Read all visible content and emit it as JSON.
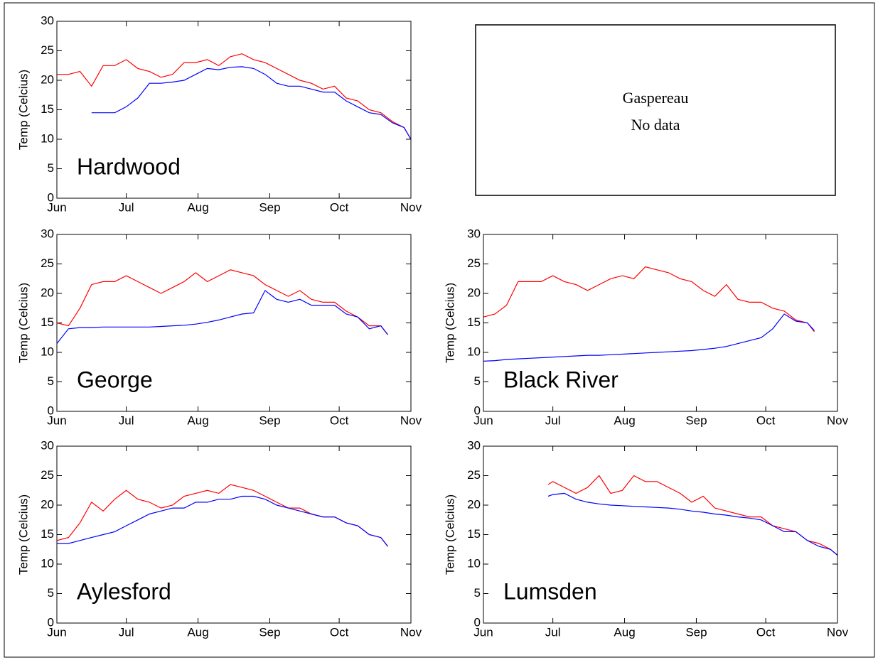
{
  "chart_data": [
    {
      "type": "line",
      "label": "Hardwood",
      "ylabel": "Temp (Celcius)",
      "x": [
        0,
        5,
        10,
        15,
        20,
        25,
        30,
        35,
        40,
        45,
        50,
        55,
        60,
        65,
        70,
        75,
        80,
        85,
        90,
        95,
        100,
        105,
        110,
        115,
        120,
        125,
        130,
        135,
        140,
        145,
        150,
        153
      ],
      "series": [
        {
          "color": "#ff0000",
          "values": [
            21,
            21,
            21.5,
            19,
            22.5,
            22.5,
            23.5,
            22,
            21.5,
            20.5,
            21,
            23,
            23,
            23.5,
            22.5,
            24,
            24.5,
            23.5,
            23,
            22,
            21,
            20,
            19.5,
            18.5,
            19,
            17,
            16.5,
            15,
            14.5,
            13,
            12,
            10
          ]
        },
        {
          "color": "#0000ff",
          "values": [
            null,
            null,
            null,
            14.5,
            14.5,
            14.5,
            15.5,
            17,
            19.5,
            19.5,
            19.7,
            20,
            21,
            22,
            21.8,
            22.2,
            22.3,
            22,
            21,
            19.5,
            19,
            19,
            18.5,
            18,
            18,
            16.5,
            15.5,
            14.5,
            14.2,
            12.8,
            12,
            10
          ]
        }
      ],
      "xlim": [
        0,
        153
      ],
      "xticks": [
        {
          "value": 0,
          "label": "Jun"
        },
        {
          "value": 30,
          "label": "Jul"
        },
        {
          "value": 61,
          "label": "Aug"
        },
        {
          "value": 92,
          "label": "Sep"
        },
        {
          "value": 122,
          "label": "Oct"
        },
        {
          "value": 153,
          "label": "Nov"
        }
      ],
      "ylim": [
        0,
        30
      ],
      "yticks": [
        0,
        5,
        10,
        15,
        20,
        25,
        30
      ]
    },
    {
      "type": "line",
      "label": "George",
      "ylabel": "Temp (Celcius)",
      "x": [
        0,
        5,
        10,
        15,
        20,
        25,
        30,
        35,
        40,
        45,
        50,
        55,
        60,
        65,
        70,
        75,
        80,
        85,
        90,
        95,
        100,
        105,
        110,
        115,
        120,
        125,
        130,
        135,
        140,
        143
      ],
      "series": [
        {
          "color": "#ff0000",
          "values": [
            15,
            14.5,
            17.5,
            21.5,
            22,
            22,
            23,
            22,
            21,
            20,
            21,
            22,
            23.5,
            22,
            23,
            24,
            23.5,
            23,
            21.5,
            20.5,
            19.5,
            20.5,
            19,
            18.5,
            18.5,
            17,
            16,
            14.5,
            14.5,
            13
          ]
        },
        {
          "color": "#0000ff",
          "values": [
            11.5,
            14,
            14.2,
            14.2,
            14.3,
            14.3,
            14.3,
            14.3,
            14.3,
            14.4,
            14.5,
            14.6,
            14.8,
            15.1,
            15.5,
            16,
            16.5,
            16.7,
            20.5,
            19,
            18.5,
            19,
            18,
            18,
            18,
            16.5,
            16,
            14,
            14.5,
            13
          ]
        }
      ],
      "xlim": [
        0,
        153
      ],
      "xticks": [
        {
          "value": 0,
          "label": "Jun"
        },
        {
          "value": 30,
          "label": "Jul"
        },
        {
          "value": 61,
          "label": "Aug"
        },
        {
          "value": 92,
          "label": "Sep"
        },
        {
          "value": 122,
          "label": "Oct"
        },
        {
          "value": 153,
          "label": "Nov"
        }
      ],
      "ylim": [
        0,
        30
      ],
      "yticks": [
        0,
        5,
        10,
        15,
        20,
        25,
        30
      ]
    },
    {
      "type": "line",
      "label": "Black River",
      "ylabel": "Temp (Celcius)",
      "x": [
        0,
        5,
        10,
        15,
        20,
        25,
        30,
        35,
        40,
        45,
        50,
        55,
        60,
        65,
        70,
        75,
        80,
        85,
        90,
        95,
        100,
        105,
        110,
        115,
        120,
        125,
        130,
        135,
        140,
        143
      ],
      "series": [
        {
          "color": "#ff0000",
          "values": [
            16,
            16.5,
            18,
            22,
            22,
            22,
            23,
            22,
            21.5,
            20.5,
            21.5,
            22.5,
            23,
            22.5,
            24.5,
            24,
            23.5,
            22.5,
            22,
            20.5,
            19.5,
            21.5,
            19,
            18.5,
            18.5,
            17.5,
            17,
            15.5,
            15,
            13.5
          ]
        },
        {
          "color": "#0000ff",
          "values": [
            8.5,
            8.6,
            8.8,
            8.9,
            9,
            9.1,
            9.2,
            9.3,
            9.4,
            9.5,
            9.5,
            9.6,
            9.7,
            9.8,
            9.9,
            10,
            10.1,
            10.2,
            10.3,
            10.5,
            10.7,
            11,
            11.5,
            12,
            12.5,
            14,
            16.5,
            15.3,
            15,
            13.7
          ]
        }
      ],
      "xlim": [
        0,
        153
      ],
      "xticks": [
        {
          "value": 0,
          "label": "Jun"
        },
        {
          "value": 30,
          "label": "Jul"
        },
        {
          "value": 61,
          "label": "Aug"
        },
        {
          "value": 92,
          "label": "Sep"
        },
        {
          "value": 122,
          "label": "Oct"
        },
        {
          "value": 153,
          "label": "Nov"
        }
      ],
      "ylim": [
        0,
        30
      ],
      "yticks": [
        0,
        5,
        10,
        15,
        20,
        25,
        30
      ]
    },
    {
      "type": "line",
      "label": "Aylesford",
      "ylabel": "Temp (Celcius)",
      "x": [
        0,
        5,
        10,
        15,
        20,
        25,
        30,
        35,
        40,
        45,
        50,
        55,
        60,
        65,
        70,
        75,
        80,
        85,
        90,
        95,
        100,
        105,
        110,
        115,
        120,
        125,
        130,
        135,
        140,
        143
      ],
      "series": [
        {
          "color": "#ff0000",
          "values": [
            14,
            14.5,
            17,
            20.5,
            19,
            21,
            22.5,
            21,
            20.5,
            19.5,
            20,
            21.5,
            22,
            22.5,
            22,
            23.5,
            23,
            22.5,
            21.5,
            20.5,
            19.5,
            19.5,
            18.5,
            18,
            18,
            17,
            16.5,
            15,
            14.5,
            13
          ]
        },
        {
          "color": "#0000ff",
          "values": [
            13.5,
            13.5,
            14,
            14.5,
            15,
            15.5,
            16.5,
            17.5,
            18.5,
            19,
            19.5,
            19.5,
            20.5,
            20.5,
            21,
            21,
            21.5,
            21.5,
            21,
            20,
            19.5,
            19,
            18.5,
            18,
            18,
            17,
            16.5,
            15,
            14.5,
            13
          ]
        }
      ],
      "xlim": [
        0,
        153
      ],
      "xticks": [
        {
          "value": 0,
          "label": "Jun"
        },
        {
          "value": 30,
          "label": "Jul"
        },
        {
          "value": 61,
          "label": "Aug"
        },
        {
          "value": 92,
          "label": "Sep"
        },
        {
          "value": 122,
          "label": "Oct"
        },
        {
          "value": 153,
          "label": "Nov"
        }
      ],
      "ylim": [
        0,
        30
      ],
      "yticks": [
        0,
        5,
        10,
        15,
        20,
        25,
        30
      ]
    },
    {
      "type": "line",
      "label": "Lumsden",
      "ylabel": "Temp (Celcius)",
      "x": [
        28,
        30,
        35,
        40,
        45,
        50,
        55,
        60,
        65,
        70,
        75,
        80,
        85,
        90,
        95,
        100,
        105,
        110,
        115,
        120,
        125,
        130,
        135,
        140,
        145,
        150,
        153
      ],
      "series": [
        {
          "color": "#ff0000",
          "values": [
            23.5,
            24,
            23,
            22,
            23,
            25,
            22,
            22.5,
            25,
            24,
            24,
            23,
            22,
            20.5,
            21.5,
            19.5,
            19,
            18.5,
            18,
            18,
            16.5,
            16,
            15.5,
            14,
            13.5,
            12.5,
            11.5
          ]
        },
        {
          "color": "#0000ff",
          "values": [
            21.5,
            21.8,
            22,
            21,
            20.5,
            20.2,
            20,
            19.9,
            19.8,
            19.7,
            19.6,
            19.5,
            19.3,
            19,
            18.8,
            18.5,
            18.3,
            18,
            17.8,
            17.5,
            16.5,
            15.5,
            15.5,
            14,
            13,
            12.5,
            11.5
          ]
        }
      ],
      "xlim": [
        0,
        153
      ],
      "xticks": [
        {
          "value": 0,
          "label": "Jun"
        },
        {
          "value": 30,
          "label": "Jul"
        },
        {
          "value": 61,
          "label": "Aug"
        },
        {
          "value": 92,
          "label": "Sep"
        },
        {
          "value": 122,
          "label": "Oct"
        },
        {
          "value": 153,
          "label": "Nov"
        }
      ],
      "ylim": [
        0,
        30
      ],
      "yticks": [
        0,
        5,
        10,
        15,
        20,
        25,
        30
      ]
    }
  ],
  "empty_panel": {
    "title": "Gaspereau",
    "text": "No data"
  }
}
